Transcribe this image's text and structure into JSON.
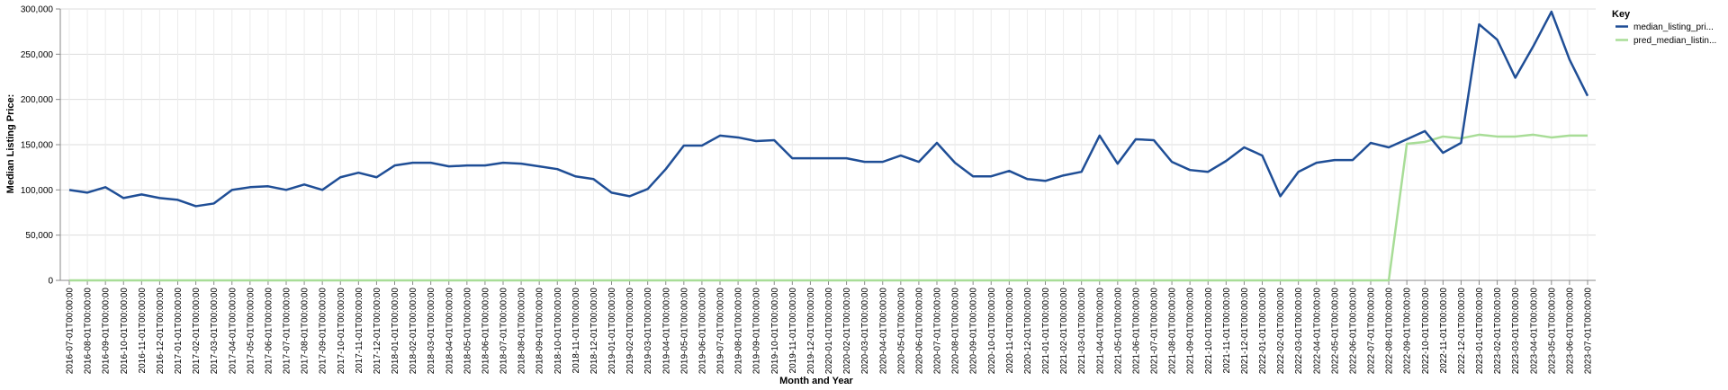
{
  "chart_data": {
    "type": "line",
    "xlabel": "Month and Year",
    "ylabel": "Median Listing Price:",
    "ylim": [
      0,
      300000
    ],
    "y_ticks": [
      0,
      50000,
      100000,
      150000,
      200000,
      250000,
      300000
    ],
    "y_tick_labels": [
      "0",
      "50,000",
      "100,000",
      "150,000",
      "200,000",
      "250,000",
      "300,000"
    ],
    "grid": true,
    "legend": {
      "title": "Key",
      "placement": "top-right"
    },
    "x": [
      "2016-07-01T00:00:00",
      "2016-08-01T00:00:00",
      "2016-09-01T00:00:00",
      "2016-10-01T00:00:00",
      "2016-11-01T00:00:00",
      "2016-12-01T00:00:00",
      "2017-01-01T00:00:00",
      "2017-02-01T00:00:00",
      "2017-03-01T00:00:00",
      "2017-04-01T00:00:00",
      "2017-05-01T00:00:00",
      "2017-06-01T00:00:00",
      "2017-07-01T00:00:00",
      "2017-08-01T00:00:00",
      "2017-09-01T00:00:00",
      "2017-10-01T00:00:00",
      "2017-11-01T00:00:00",
      "2017-12-01T00:00:00",
      "2018-01-01T00:00:00",
      "2018-02-01T00:00:00",
      "2018-03-01T00:00:00",
      "2018-04-01T00:00:00",
      "2018-05-01T00:00:00",
      "2018-06-01T00:00:00",
      "2018-07-01T00:00:00",
      "2018-08-01T00:00:00",
      "2018-09-01T00:00:00",
      "2018-10-01T00:00:00",
      "2018-11-01T00:00:00",
      "2018-12-01T00:00:00",
      "2019-01-01T00:00:00",
      "2019-02-01T00:00:00",
      "2019-03-01T00:00:00",
      "2019-04-01T00:00:00",
      "2019-05-01T00:00:00",
      "2019-06-01T00:00:00",
      "2019-07-01T00:00:00",
      "2019-08-01T00:00:00",
      "2019-09-01T00:00:00",
      "2019-10-01T00:00:00",
      "2019-11-01T00:00:00",
      "2019-12-01T00:00:00",
      "2020-01-01T00:00:00",
      "2020-02-01T00:00:00",
      "2020-03-01T00:00:00",
      "2020-04-01T00:00:00",
      "2020-05-01T00:00:00",
      "2020-06-01T00:00:00",
      "2020-07-01T00:00:00",
      "2020-08-01T00:00:00",
      "2020-09-01T00:00:00",
      "2020-10-01T00:00:00",
      "2020-11-01T00:00:00",
      "2020-12-01T00:00:00",
      "2021-01-01T00:00:00",
      "2021-02-01T00:00:00",
      "2021-03-01T00:00:00",
      "2021-04-01T00:00:00",
      "2021-05-01T00:00:00",
      "2021-06-01T00:00:00",
      "2021-07-01T00:00:00",
      "2021-08-01T00:00:00",
      "2021-09-01T00:00:00",
      "2021-10-01T00:00:00",
      "2021-11-01T00:00:00",
      "2021-12-01T00:00:00",
      "2022-01-01T00:00:00",
      "2022-02-01T00:00:00",
      "2022-03-01T00:00:00",
      "2022-04-01T00:00:00",
      "2022-05-01T00:00:00",
      "2022-06-01T00:00:00",
      "2022-07-01T00:00:00",
      "2022-08-01T00:00:00",
      "2022-09-01T00:00:00",
      "2022-10-01T00:00:00",
      "2022-11-01T00:00:00",
      "2022-12-01T00:00:00",
      "2023-01-01T00:00:00",
      "2023-02-01T00:00:00",
      "2023-03-01T00:00:00",
      "2023-04-01T00:00:00",
      "2023-05-01T00:00:00",
      "2023-06-01T00:00:00",
      "2023-07-01T00:00:00"
    ],
    "series": [
      {
        "name": "median_listing_pri...",
        "color": "#1f4e96",
        "values": [
          100000,
          97000,
          103000,
          91000,
          95000,
          91000,
          89000,
          82000,
          85000,
          100000,
          103000,
          104000,
          100000,
          106000,
          100000,
          114000,
          119000,
          114000,
          127000,
          130000,
          130000,
          126000,
          127000,
          127000,
          130000,
          129000,
          126000,
          123000,
          115000,
          112000,
          97000,
          93000,
          101000,
          123000,
          149000,
          149000,
          160000,
          158000,
          154000,
          155000,
          135000,
          135000,
          135000,
          135000,
          131000,
          131000,
          138000,
          131000,
          152000,
          130000,
          115000,
          115000,
          121000,
          112000,
          110000,
          116000,
          120000,
          160000,
          129000,
          156000,
          155000,
          131000,
          122000,
          120000,
          132000,
          147000,
          138000,
          93000,
          120000,
          130000,
          133000,
          133000,
          152000,
          147000,
          156000,
          165000,
          141000,
          152000,
          283000,
          266000,
          224000,
          259000,
          297000,
          244000,
          204000
        ]
      },
      {
        "name": "pred_median_listin...",
        "color": "#a8dd97",
        "values": [
          0,
          0,
          0,
          0,
          0,
          0,
          0,
          0,
          0,
          0,
          0,
          0,
          0,
          0,
          0,
          0,
          0,
          0,
          0,
          0,
          0,
          0,
          0,
          0,
          0,
          0,
          0,
          0,
          0,
          0,
          0,
          0,
          0,
          0,
          0,
          0,
          0,
          0,
          0,
          0,
          0,
          0,
          0,
          0,
          0,
          0,
          0,
          0,
          0,
          0,
          0,
          0,
          0,
          0,
          0,
          0,
          0,
          0,
          0,
          0,
          0,
          0,
          0,
          0,
          0,
          0,
          0,
          0,
          0,
          0,
          0,
          0,
          0,
          0,
          151000,
          153000,
          159000,
          157000,
          161000,
          159000,
          159000,
          161000,
          158000,
          160000,
          160000
        ]
      }
    ]
  }
}
